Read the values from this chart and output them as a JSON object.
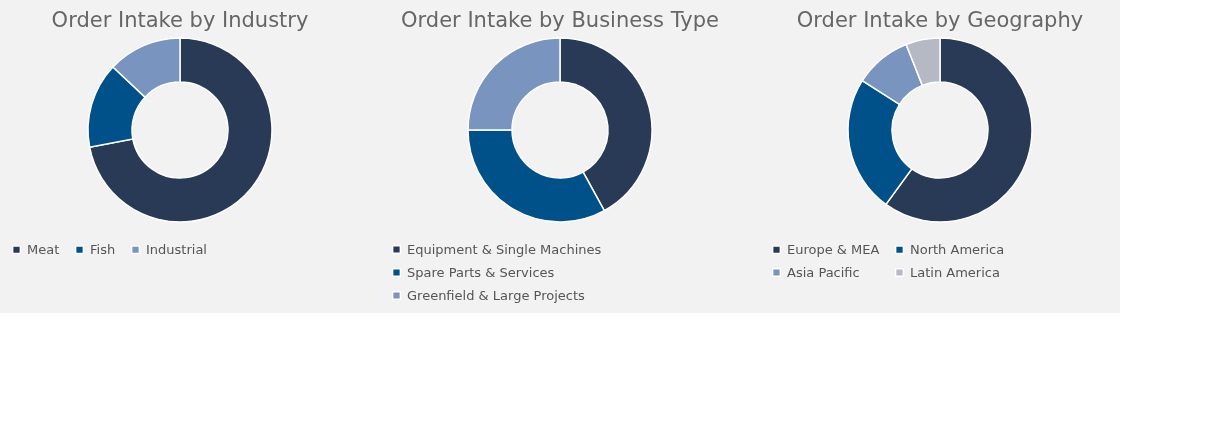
{
  "chart_data": [
    {
      "type": "donut",
      "title": "Order Intake by Industry",
      "categories": [
        "Meat",
        "Fish",
        "Industrial"
      ],
      "values": [
        72,
        15,
        13
      ],
      "colors": [
        "#283a56",
        "#00508a",
        "#7894bf"
      ],
      "legend": "bottom"
    },
    {
      "type": "donut",
      "title": "Order Intake by Business Type",
      "categories": [
        "Equipment & Single Machines",
        "Spare Parts & Services",
        "Greenfield & Large Projects"
      ],
      "values": [
        42,
        33,
        25
      ],
      "colors": [
        "#283a56",
        "#00508a",
        "#7894bf"
      ],
      "legend": "bottom"
    },
    {
      "type": "donut",
      "title": "Order Intake by Geography",
      "categories": [
        "Europe & MEA",
        "North America",
        "Asia Pacific",
        "Latin America"
      ],
      "values": [
        60,
        24,
        10,
        6
      ],
      "colors": [
        "#283a56",
        "#00508a",
        "#7894bf",
        "#b4b9c3"
      ],
      "legend": "bottom"
    }
  ]
}
